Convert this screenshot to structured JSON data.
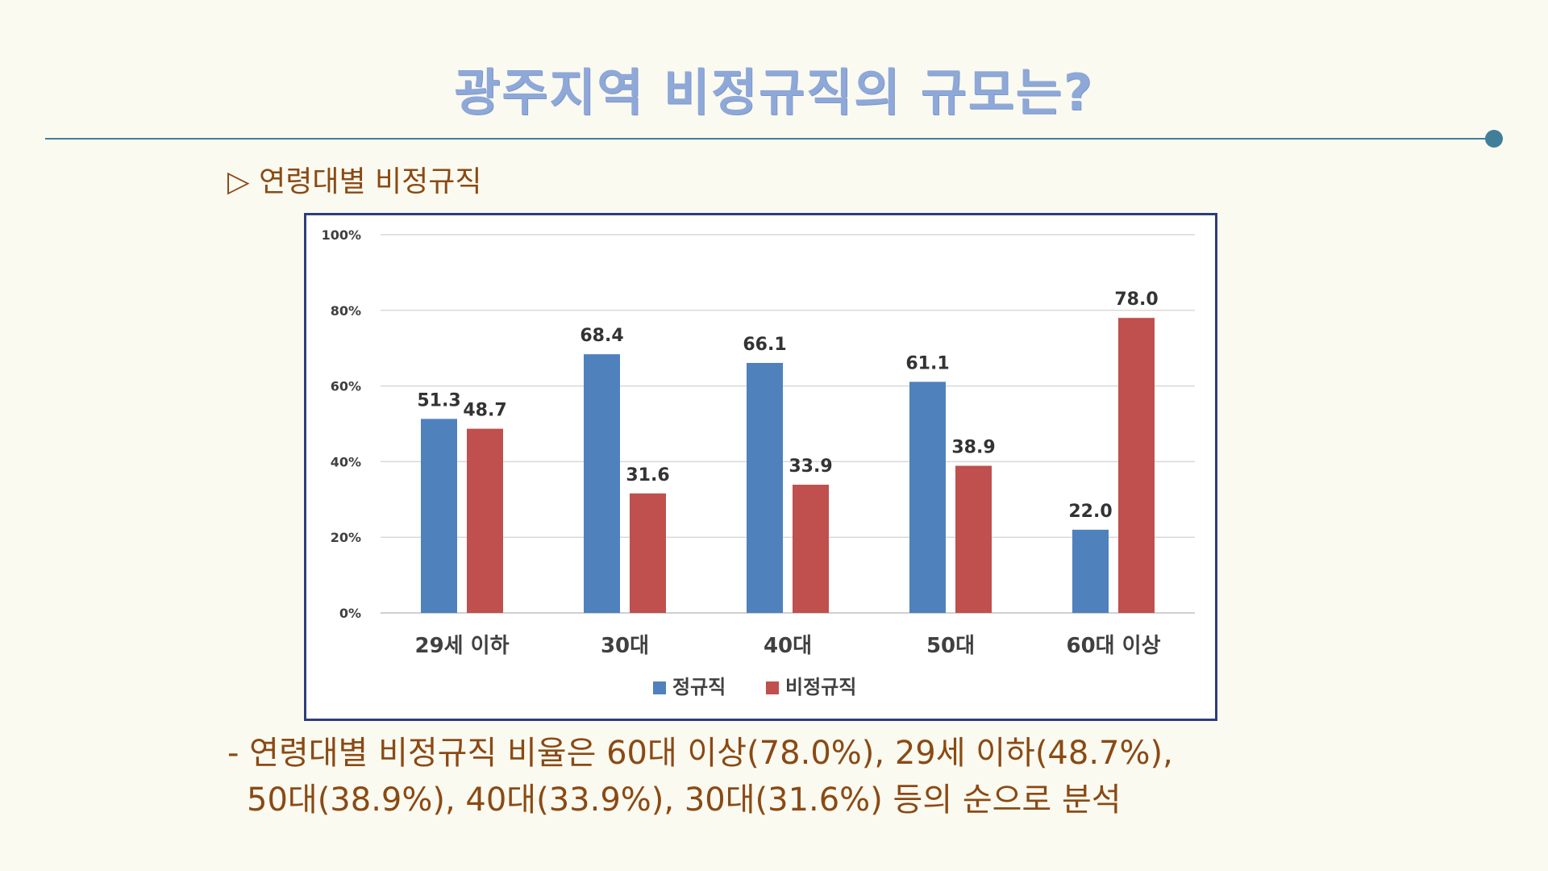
{
  "header": {
    "title": "광주지역 비정규직의 규모는?"
  },
  "section": {
    "subtitle": "▷ 연령대별 비정규직"
  },
  "colors": {
    "regular": "#4f81bd",
    "irregular": "#c0504d",
    "title": "#8ea8d8",
    "text": "#8a4a14",
    "accent": "#3f7f99"
  },
  "chart_data": {
    "type": "bar",
    "categories": [
      "29세 이하",
      "30대",
      "40대",
      "50대",
      "60대 이상"
    ],
    "series": [
      {
        "name": "정규직",
        "values": [
          51.3,
          68.4,
          66.1,
          61.1,
          22.0
        ],
        "labels": [
          "51.3",
          "68.4",
          "66.1",
          "61.1",
          "22.0"
        ]
      },
      {
        "name": "비정규직",
        "values": [
          48.7,
          31.6,
          33.9,
          38.9,
          78.0
        ],
        "labels": [
          "48.7",
          "31.6",
          "33.9",
          "38.9",
          "78.0"
        ]
      }
    ],
    "ylim": [
      0,
      100
    ],
    "yticks": [
      "0%",
      "20%",
      "40%",
      "60%",
      "80%",
      "100%"
    ],
    "grid": true,
    "legend": "bottom"
  },
  "notes": {
    "line1": "- 연령대별 비정규직 비율은 60대 이상(78.0%), 29세 이하(48.7%),",
    "line2": "50대(38.9%), 40대(33.9%), 30대(31.6%) 등의 순으로 분석"
  }
}
